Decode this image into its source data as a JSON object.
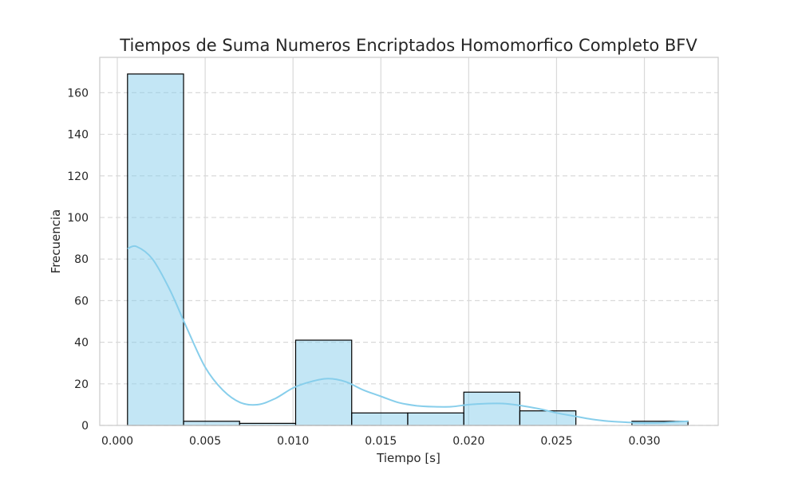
{
  "chart_data": {
    "type": "bar",
    "title": "Tiempos de Suma Numeros Encriptados Homomorfico Completo BFV",
    "xlabel": "Tiempo [s]",
    "ylabel": "Frecuencia",
    "xlim": [
      -0.001,
      0.0342
    ],
    "ylim": [
      0,
      177
    ],
    "xticks": [
      "0.000",
      "0.005",
      "0.010",
      "0.015",
      "0.020",
      "0.025",
      "0.030"
    ],
    "yticks": [
      "0",
      "20",
      "40",
      "60",
      "80",
      "100",
      "120",
      "140",
      "160"
    ],
    "bins": [
      {
        "start": 0.00058,
        "end": 0.00377,
        "count": 169
      },
      {
        "start": 0.00377,
        "end": 0.00696,
        "count": 2
      },
      {
        "start": 0.00696,
        "end": 0.01015,
        "count": 1
      },
      {
        "start": 0.01015,
        "end": 0.01334,
        "count": 41
      },
      {
        "start": 0.01334,
        "end": 0.01653,
        "count": 6
      },
      {
        "start": 0.01653,
        "end": 0.01972,
        "count": 6
      },
      {
        "start": 0.01972,
        "end": 0.02291,
        "count": 16
      },
      {
        "start": 0.02291,
        "end": 0.0261,
        "count": 7
      },
      {
        "start": 0.0261,
        "end": 0.02929,
        "count": 0
      },
      {
        "start": 0.02929,
        "end": 0.03248,
        "count": 2
      }
    ],
    "kde": {
      "x": [
        0.00058,
        0.0011,
        0.002,
        0.003,
        0.004,
        0.005,
        0.006,
        0.007,
        0.008,
        0.009,
        0.01,
        0.011,
        0.012,
        0.013,
        0.014,
        0.015,
        0.016,
        0.017,
        0.018,
        0.019,
        0.02,
        0.021,
        0.022,
        0.023,
        0.024,
        0.025,
        0.026,
        0.027,
        0.028,
        0.029,
        0.03,
        0.031,
        0.032,
        0.0325
      ],
      "y": [
        85,
        86,
        80,
        65,
        46,
        28,
        17,
        11,
        10,
        13,
        18,
        21,
        22.5,
        21,
        17,
        14,
        11,
        9.5,
        9,
        9,
        10,
        10.5,
        10.5,
        9.5,
        8,
        6,
        4.5,
        3,
        2,
        1.5,
        1.2,
        1.3,
        1.8,
        2
      ]
    },
    "bar_color": "#87ceeb",
    "bar_fill_opacity": 0.5,
    "bar_edge_color": "#000000",
    "kde_color": "#87ceeb",
    "grid": true,
    "grid_style": "y dashed, x solid",
    "legend": "none"
  }
}
